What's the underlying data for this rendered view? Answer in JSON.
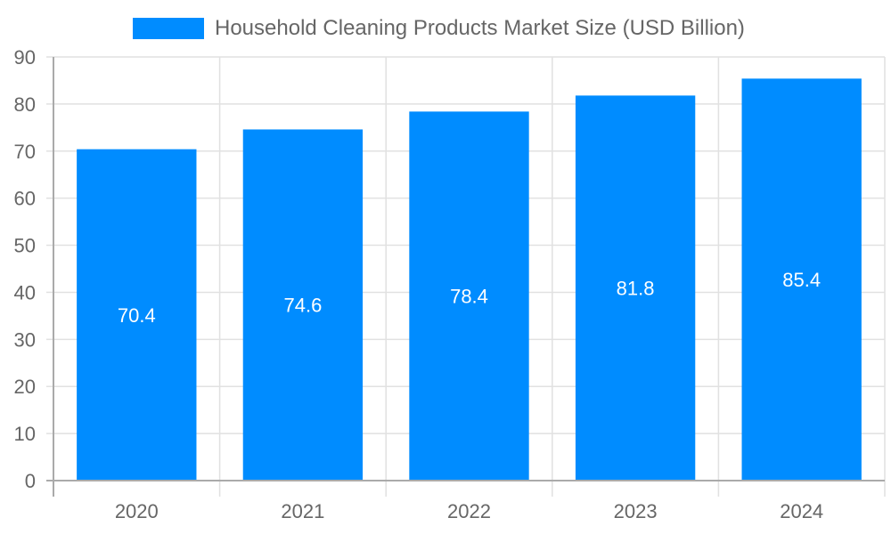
{
  "chart_data": {
    "type": "bar",
    "title": "",
    "legend": [
      {
        "label": "Household Cleaning Products Market Size (USD Billion)",
        "color": "#008cff"
      }
    ],
    "legend_position": "top",
    "categories": [
      "2020",
      "2021",
      "2022",
      "2023",
      "2024"
    ],
    "series": [
      {
        "name": "Household Cleaning Products Market Size (USD Billion)",
        "values": [
          70.4,
          74.6,
          78.4,
          81.8,
          85.4
        ],
        "color": "#008cff"
      }
    ],
    "values": [
      70.4,
      74.6,
      78.4,
      81.8,
      85.4
    ],
    "data_labels": [
      "70.4",
      "74.6",
      "78.4",
      "81.8",
      "85.4"
    ],
    "xlabel": "",
    "ylabel": "",
    "ylim": [
      0,
      90
    ],
    "yticks": [
      0,
      10,
      20,
      30,
      40,
      50,
      60,
      70,
      80,
      90
    ],
    "grid": true
  },
  "legend": {
    "label": "Household Cleaning Products Market Size (USD Billion)",
    "color": "#008cff"
  },
  "colors": {
    "bar": "#008cff",
    "grid": "#e1e1e1",
    "axis": "#aaaaaa",
    "tick_text": "#666666"
  }
}
